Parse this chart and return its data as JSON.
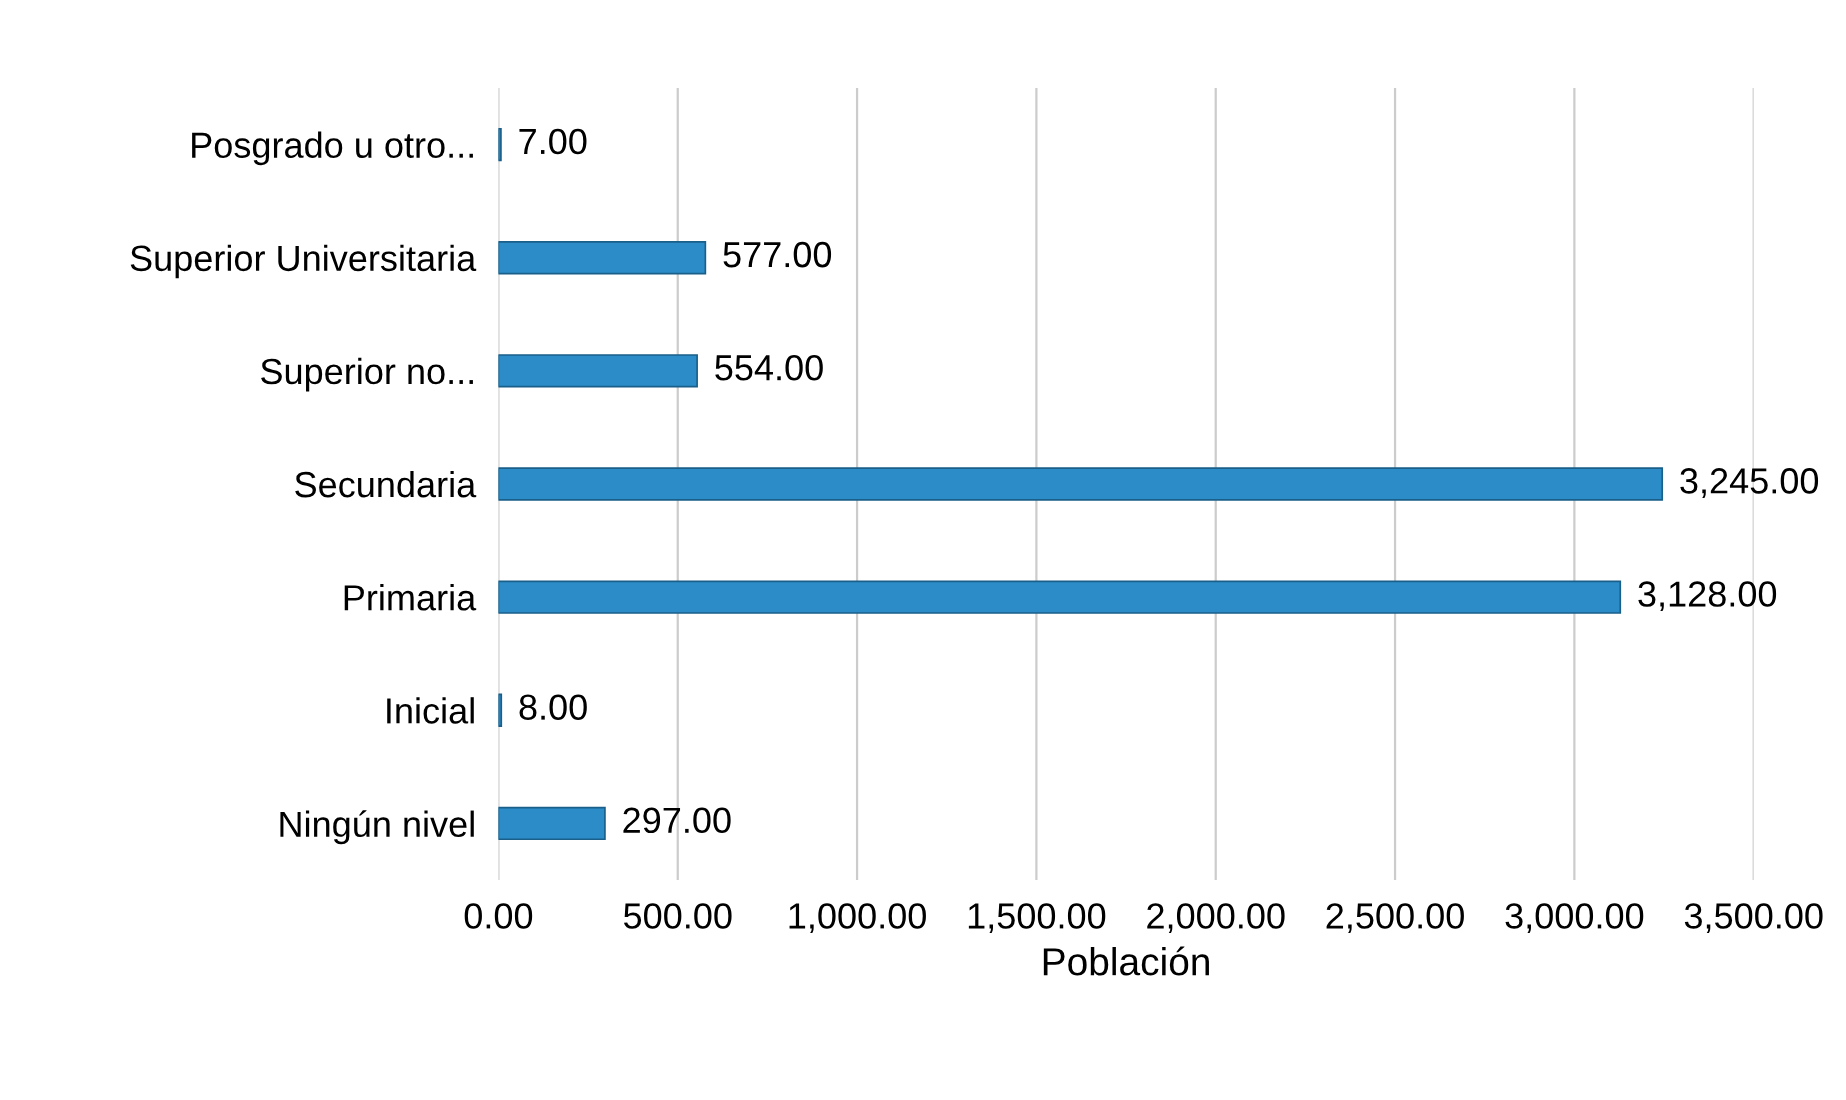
{
  "chart_data": {
    "type": "bar",
    "orientation": "horizontal",
    "xlabel": "Población",
    "categories": [
      "Posgrado u otro...",
      "Superior Universitaria",
      "Superior no...",
      "Secundaria",
      "Primaria",
      "Inicial",
      "Ningún nivel"
    ],
    "values": [
      7,
      577,
      554,
      3245,
      3128,
      8,
      297
    ],
    "value_labels": [
      "7.00",
      "577.00",
      "554.00",
      "3,245.00",
      "3,128.00",
      "8.00",
      "297.00"
    ],
    "color": "#2b8cc8",
    "xlim": [
      0,
      3500
    ],
    "xticks": [
      {
        "value": 0,
        "label": "0.00"
      },
      {
        "value": 500,
        "label": "500.00"
      },
      {
        "value": 1000,
        "label": "1,000.00"
      },
      {
        "value": 1500,
        "label": "1,500.00"
      },
      {
        "value": 2000,
        "label": "2,000.00"
      },
      {
        "value": 2500,
        "label": "2,500.00"
      },
      {
        "value": 3000,
        "label": "3,000.00"
      },
      {
        "value": 3500,
        "label": "3,500.00"
      }
    ],
    "grid": "x",
    "legend": false
  }
}
